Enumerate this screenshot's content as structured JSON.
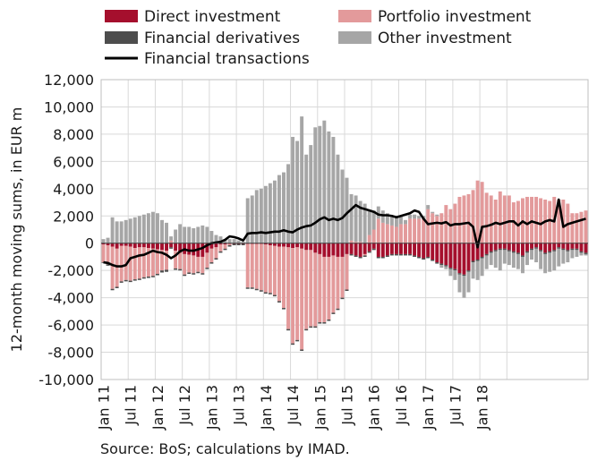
{
  "chart_data": {
    "type": "bar",
    "stacked": true,
    "ylabel": "12-month moving sums, in EUR m",
    "ylim": [
      -10000,
      12000
    ],
    "yticks": [
      -10000,
      -8000,
      -6000,
      -4000,
      -2000,
      0,
      2000,
      4000,
      6000,
      8000,
      10000,
      12000
    ],
    "yticklabels": [
      "-10,000",
      "-8,000",
      "-6,000",
      "-4,000",
      "-2,000",
      "0",
      "2,000",
      "4,000",
      "6,000",
      "8,000",
      "10,000",
      "12,000"
    ],
    "xticks": [
      "Jan 11",
      "Jul 11",
      "Jan 12",
      "Jul 12",
      "Jan 13",
      "Jul 13",
      "Jan 14",
      "Jul 14",
      "Jan 15",
      "Jul 15",
      "Jan 16",
      "Jul 16",
      "Jan 17",
      "Jul 17",
      "Jan 18"
    ],
    "grid": true,
    "legend_position": "top",
    "colors": {
      "Direct investment": "#a50f2d",
      "Portfolio investment": "#e39a9b",
      "Financial derivatives": "#4d4d4d",
      "Other investment": "#a6a6a6",
      "Financial transactions": "#000000"
    },
    "series": [
      {
        "name": "Direct investment",
        "kind": "bar",
        "values": [
          -100,
          -150,
          -250,
          -400,
          -200,
          -200,
          -250,
          -350,
          -300,
          -300,
          -350,
          -400,
          -450,
          -500,
          -550,
          -300,
          -550,
          -700,
          -800,
          -850,
          -900,
          -1000,
          -1000,
          -700,
          -400,
          -300,
          -100,
          -100,
          -50,
          -50,
          -50,
          -50,
          -50,
          -50,
          -50,
          -50,
          -100,
          -150,
          -200,
          -250,
          -250,
          -300,
          -350,
          -300,
          -400,
          -500,
          -500,
          -700,
          -800,
          -1000,
          -1000,
          -900,
          -1000,
          -1000,
          -800,
          -800,
          -900,
          -1000,
          -800,
          -600,
          -400,
          -1000,
          -1000,
          -900,
          -800,
          -800,
          -800,
          -800,
          -800,
          -900,
          -1000,
          -1100,
          -1000,
          -1200,
          -1400,
          -1500,
          -1600,
          -1800,
          -1900,
          -2200,
          -2300,
          -2000,
          -1300,
          -1200,
          -1000,
          -800,
          -600,
          -500,
          -400,
          -400,
          -500,
          -600,
          -700,
          -900,
          -600,
          -400,
          -300,
          -500,
          -700,
          -600,
          -500,
          -300,
          -400,
          -500,
          -400,
          -400,
          -600,
          -700
        ]
      },
      {
        "name": "Portfolio investment",
        "kind": "bar",
        "values": [
          -1300,
          -1400,
          -3100,
          -2800,
          -2600,
          -2500,
          -2500,
          -2300,
          -2300,
          -2200,
          -2100,
          -2000,
          -1800,
          -1500,
          -1400,
          200,
          -1300,
          -1200,
          -1500,
          -1300,
          -1300,
          -1100,
          -1200,
          -1100,
          -1000,
          -800,
          -500,
          -300,
          -100,
          0,
          0,
          0,
          -3200,
          -3200,
          -3300,
          -3400,
          -3500,
          -3500,
          -3600,
          -4000,
          -4500,
          -6000,
          -7000,
          -6800,
          -7400,
          -5800,
          -5600,
          -5400,
          -5000,
          -4800,
          -4600,
          -4200,
          -3800,
          -3000,
          -2600,
          200,
          100,
          100,
          -100,
          600,
          1000,
          1800,
          1500,
          1400,
          1300,
          1200,
          1400,
          1400,
          1800,
          1800,
          1800,
          1800,
          2500,
          2200,
          2000,
          2200,
          2800,
          2500,
          2900,
          3400,
          3500,
          3600,
          3900,
          4600,
          4500,
          3700,
          3500,
          3200,
          3800,
          3500,
          3500,
          3000,
          3100,
          3300,
          3400,
          3400,
          3400,
          3300,
          3200,
          3100,
          3400,
          3200,
          3200,
          2900,
          2200,
          2200,
          2300,
          2400
        ]
      },
      {
        "name": "Financial derivatives",
        "kind": "bar",
        "values": [
          -50,
          -100,
          -100,
          -100,
          -100,
          -100,
          -100,
          -100,
          -100,
          -100,
          -100,
          -100,
          -100,
          -150,
          -150,
          -100,
          -100,
          -100,
          -100,
          -100,
          -100,
          -100,
          -100,
          -100,
          -100,
          -100,
          -100,
          -100,
          -100,
          -100,
          -100,
          -100,
          -100,
          -100,
          -100,
          -100,
          -100,
          -100,
          -100,
          -100,
          -100,
          -100,
          -100,
          -100,
          -100,
          -100,
          -100,
          -100,
          -100,
          -100,
          -100,
          -100,
          -100,
          -100,
          -100,
          -100,
          -100,
          -100,
          -100,
          -100,
          -100,
          -100,
          -100,
          -100,
          -100,
          -100,
          -100,
          -100,
          -100,
          -100,
          -100,
          -100,
          -100,
          -100,
          -100,
          -100,
          -100,
          -100,
          -100,
          -100,
          -100,
          -100,
          -100,
          -100,
          -100,
          -100,
          -100,
          -100,
          -100,
          -100,
          -100,
          -100,
          -100,
          -100,
          -100,
          -100,
          -100,
          -100,
          -100,
          -100,
          -100,
          -100,
          -100,
          -100,
          -100,
          -100,
          -100,
          -100
        ]
      },
      {
        "name": "Other investment",
        "kind": "bar",
        "values": [
          300,
          400,
          1900,
          1600,
          1600,
          1700,
          1800,
          1900,
          2000,
          2100,
          2200,
          2300,
          2200,
          1700,
          1500,
          300,
          1000,
          1400,
          1200,
          1200,
          1100,
          1200,
          1300,
          1200,
          900,
          600,
          500,
          300,
          300,
          300,
          200,
          100,
          3300,
          3500,
          3900,
          4000,
          4200,
          4400,
          4600,
          5000,
          5200,
          5800,
          7800,
          7500,
          9300,
          6500,
          7200,
          8500,
          8600,
          9000,
          8200,
          7800,
          6500,
          5400,
          4800,
          3400,
          3400,
          3000,
          2900,
          1800,
          1400,
          900,
          900,
          800,
          700,
          800,
          600,
          300,
          300,
          300,
          200,
          200,
          300,
          100,
          100,
          -200,
          -200,
          -500,
          -700,
          -1300,
          -1600,
          -1500,
          -1200,
          -1400,
          -1300,
          -1000,
          -900,
          -1200,
          -1500,
          -1000,
          -1000,
          -1100,
          -1100,
          -1200,
          -900,
          -700,
          -1000,
          -1300,
          -1400,
          -1400,
          -1400,
          -1300,
          -1000,
          -800,
          -600,
          -500,
          -200,
          -100
        ]
      },
      {
        "name": "Financial transactions",
        "kind": "line",
        "values": [
          -1400,
          -1450,
          -1600,
          -1700,
          -1700,
          -1600,
          -1100,
          -1000,
          -900,
          -850,
          -700,
          -550,
          -650,
          -700,
          -850,
          -1100,
          -900,
          -600,
          -450,
          -550,
          -550,
          -450,
          -350,
          -150,
          0,
          50,
          100,
          250,
          500,
          450,
          350,
          200,
          700,
          750,
          750,
          800,
          750,
          800,
          850,
          850,
          950,
          850,
          800,
          1000,
          1150,
          1250,
          1300,
          1500,
          1750,
          1900,
          1700,
          1800,
          1700,
          1850,
          2200,
          2500,
          2800,
          2600,
          2500,
          2400,
          2300,
          2100,
          2050,
          2050,
          2000,
          1900,
          2000,
          2100,
          2200,
          2400,
          2300,
          1800,
          1400,
          1450,
          1500,
          1450,
          1550,
          1300,
          1400,
          1400,
          1450,
          1500,
          1200,
          -300,
          1200,
          1250,
          1350,
          1500,
          1400,
          1500,
          1600,
          1600,
          1300,
          1600,
          1400,
          1600,
          1500,
          1400,
          1600,
          1700,
          1600,
          3200,
          1200,
          1400,
          1500,
          1600,
          1700,
          1800
        ]
      }
    ]
  },
  "source": "Source: BoS; calculations by IMAD."
}
